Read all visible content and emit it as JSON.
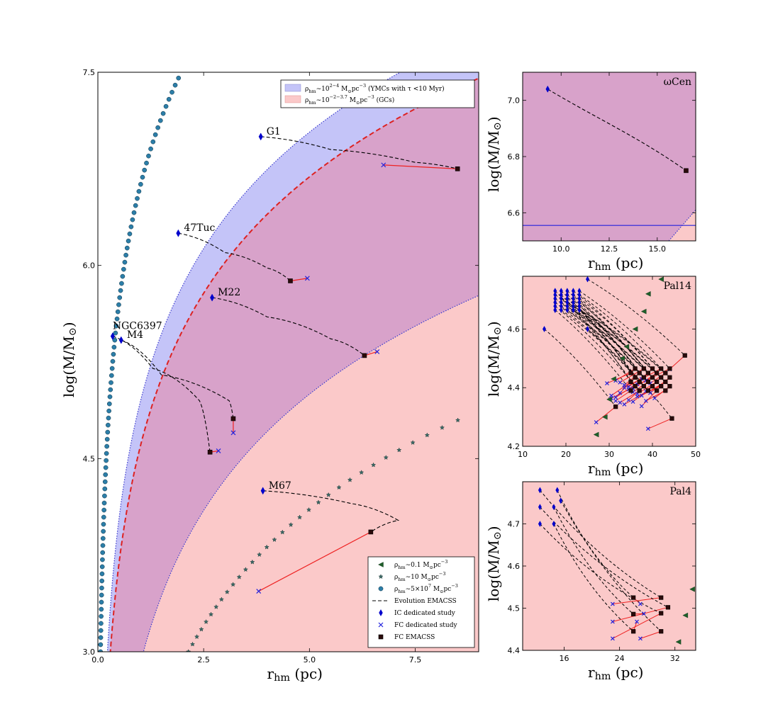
{
  "chart_data": [
    {
      "panel": "main",
      "type": "scatter",
      "xlabel": "r_hm (pc)",
      "ylabel": "log(M/M_sun)",
      "xlim": [
        0,
        9
      ],
      "ylim": [
        3.0,
        7.5
      ],
      "xticks": [
        "0.0",
        "2.5",
        "5.0",
        "7.5"
      ],
      "xtick_values": [
        0,
        2.5,
        5.0,
        7.5
      ],
      "yticks": [
        "3.0",
        "4.5",
        "6.0",
        "7.5"
      ],
      "ytick_values": [
        3.0,
        4.5,
        6.0,
        7.5
      ],
      "colors": {
        "ymc_fill": "#c4c4f8",
        "gc_fill": "#fbc9c9",
        "overlap_fill": "#d8a2ca",
        "ic": "#0000cc",
        "fc_dedicated": "#2222dd",
        "fc_emacss": "#2a0a0a",
        "emacss": "#000000",
        "link": "#ee2222",
        "low_density": "#1e5f2a",
        "mid_density": "#3a6a66",
        "high_density": "#2c7ea8",
        "red_dashed": "#dd2222"
      },
      "legend_top": [
        {
          "label": "ρ_hm∼10^2−4 M⊙pc^−3 (YMCs with τ <10 Myr)",
          "color": "#c4c4f8"
        },
        {
          "label": "ρ_hm∼10^−2−3.7 M⊙pc^−3 (GCs)",
          "color": "#fbc9c9"
        }
      ],
      "legend_bottom": [
        {
          "label": "ρ_hm∼0.1 M⊙pc^−3",
          "marker": "triangle-left"
        },
        {
          "label": "ρ_hm∼10 M⊙pc^−3",
          "marker": "star"
        },
        {
          "label": "ρ_hm∼5×10^7 M⊙pc^−3",
          "marker": "circle"
        },
        {
          "label": "Evolution EMACSS",
          "marker": "dashed-line"
        },
        {
          "label": "IC dedicated study",
          "marker": "diamond"
        },
        {
          "label": "FC dedicated study",
          "marker": "x"
        },
        {
          "label": "FC EMACSS",
          "marker": "square"
        }
      ],
      "clusters": [
        {
          "name": "G1",
          "ic": [
            3.85,
            7.0
          ],
          "fc": [
            6.75,
            6.78
          ],
          "emacss_fc": [
            8.5,
            6.75
          ],
          "path": [
            [
              3.85,
              7.0
            ],
            [
              5.5,
              6.9
            ],
            [
              7.5,
              6.8
            ],
            [
              8.5,
              6.75
            ]
          ]
        },
        {
          "name": "47Tuc",
          "ic": [
            1.9,
            6.25
          ],
          "fc": [
            4.95,
            5.9
          ],
          "emacss_fc": [
            4.55,
            5.88
          ],
          "path": [
            [
              1.9,
              6.25
            ],
            [
              3.0,
              6.1
            ],
            [
              4.0,
              5.98
            ],
            [
              4.55,
              5.88
            ]
          ]
        },
        {
          "name": "M22",
          "ic": [
            2.7,
            5.75
          ],
          "fc": [
            6.6,
            5.33
          ],
          "emacss_fc": [
            6.3,
            5.3
          ],
          "path": [
            [
              2.7,
              5.75
            ],
            [
              4.0,
              5.6
            ],
            [
              5.5,
              5.43
            ],
            [
              6.3,
              5.3
            ]
          ]
        },
        {
          "name": "NGC6397",
          "ic": [
            0.35,
            5.45
          ],
          "fc": [
            2.85,
            4.56
          ],
          "emacss_fc": [
            2.65,
            4.55
          ],
          "path": [
            [
              0.35,
              5.45
            ],
            [
              1.3,
              5.2
            ],
            [
              2.4,
              4.95
            ],
            [
              2.65,
              4.55
            ]
          ]
        },
        {
          "name": "M4",
          "ic": [
            0.55,
            5.42
          ],
          "fc": [
            3.2,
            4.7
          ],
          "emacss_fc": [
            3.2,
            4.81
          ],
          "path": [
            [
              0.55,
              5.42
            ],
            [
              1.5,
              5.15
            ],
            [
              3.1,
              4.95
            ],
            [
              3.2,
              4.81
            ]
          ]
        },
        {
          "name": "M67",
          "ic": [
            3.9,
            4.25
          ],
          "fc": [
            3.8,
            3.47
          ],
          "emacss_fc": [
            6.45,
            3.93
          ],
          "path": [
            [
              3.9,
              4.25
            ],
            [
              6.0,
              4.15
            ],
            [
              7.1,
              4.02
            ],
            [
              6.45,
              3.93
            ]
          ]
        }
      ]
    },
    {
      "panel": "omegaCen",
      "type": "scatter",
      "title": "ωCen",
      "xlabel": "r_hm (pc)",
      "ylabel": "log(M/M_sun)",
      "xlim": [
        8,
        17
      ],
      "ylim": [
        6.5,
        7.1
      ],
      "xticks": [
        "10.0",
        "12.5",
        "15.0"
      ],
      "xtick_values": [
        10.0,
        12.5,
        15.0
      ],
      "yticks": [
        "6.6",
        "6.8",
        "7.0"
      ],
      "ytick_values": [
        6.6,
        6.8,
        7.0
      ],
      "ic": [
        9.3,
        7.04
      ],
      "emacss_fc": [
        16.5,
        6.75
      ],
      "horizontal_line": 6.555
    },
    {
      "panel": "Pal14",
      "type": "scatter",
      "title": "Pal14",
      "xlabel": "r_hm (pc)",
      "ylabel": "log(M/M_sun)",
      "xlim": [
        10,
        50
      ],
      "ylim": [
        4.2,
        4.78
      ],
      "xticks": [
        "10",
        "20",
        "30",
        "40",
        "50"
      ],
      "xtick_values": [
        10,
        20,
        30,
        40,
        50
      ],
      "yticks": [
        "4.2",
        "4.4",
        "4.6"
      ],
      "ytick_values": [
        4.2,
        4.4,
        4.6
      ]
    },
    {
      "panel": "Pal4",
      "type": "scatter",
      "title": "Pal4",
      "xlabel": "r_hm (pc)",
      "ylabel": "log(M/M_sun)",
      "xlim": [
        10,
        35
      ],
      "ylim": [
        4.4,
        4.8
      ],
      "xticks": [
        "16",
        "24",
        "32"
      ],
      "xtick_values": [
        16,
        24,
        32
      ],
      "yticks": [
        "4.4",
        "4.5",
        "4.6",
        "4.7"
      ],
      "ytick_values": [
        4.4,
        4.5,
        4.6,
        4.7
      ]
    }
  ]
}
